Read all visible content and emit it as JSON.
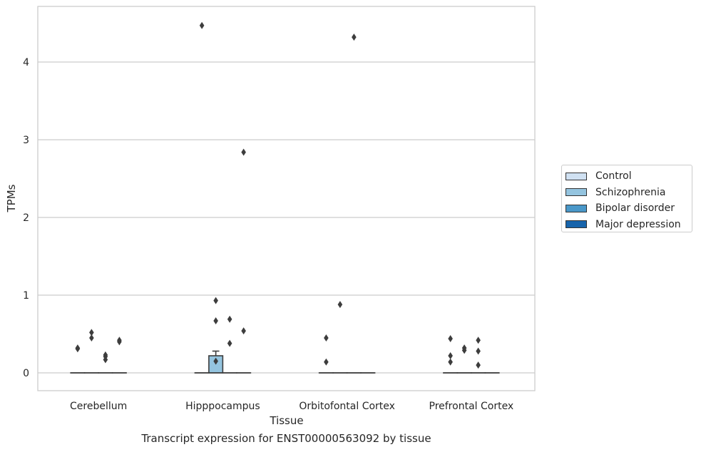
{
  "caption": "Transcript expression for ENST00000563092 by tissue",
  "chart_data": {
    "type": "box",
    "title": "",
    "xlabel": "Tissue",
    "ylabel": "TPMs",
    "ylim": [
      -0.22,
      4.7
    ],
    "yticks": [
      0,
      1,
      2,
      3,
      4
    ],
    "grid": "horizontal",
    "legend_placement": "right",
    "categories": [
      "Cerebellum",
      "Hipppocampus",
      "Orbitofontal Cortex",
      "Prefrontal Cortex"
    ],
    "series": [
      {
        "name": "Control",
        "color": "#d0e1f2"
      },
      {
        "name": "Schizophrenia",
        "color": "#94c4df"
      },
      {
        "name": "Bipolar disorder",
        "color": "#4a98c9"
      },
      {
        "name": "Major depression",
        "color": "#1764ab"
      }
    ],
    "boxes": [
      [
        {
          "q1": 0,
          "median": 0,
          "q3": 0,
          "whisker_low": 0,
          "whisker_high": 0,
          "outliers": [
            0.32,
            0.31
          ]
        },
        {
          "q1": 0,
          "median": 0,
          "q3": 0,
          "whisker_low": 0,
          "whisker_high": 0,
          "outliers": [
            0.52,
            0.45
          ]
        },
        {
          "q1": 0,
          "median": 0,
          "q3": 0,
          "whisker_low": 0,
          "whisker_high": 0,
          "outliers": [
            0.23,
            0.21,
            0.17
          ]
        },
        {
          "q1": 0,
          "median": 0,
          "q3": 0,
          "whisker_low": 0,
          "whisker_high": 0,
          "outliers": [
            0.42,
            0.4
          ]
        }
      ],
      [
        {
          "q1": 0,
          "median": 0,
          "q3": 0,
          "whisker_low": 0,
          "whisker_high": 0,
          "outliers": [
            4.47
          ]
        },
        {
          "q1": 0,
          "median": 0,
          "q3": 0.22,
          "whisker_low": 0,
          "whisker_high": 0.28,
          "outliers": [
            0.93,
            0.67,
            0.15
          ]
        },
        {
          "q1": 0,
          "median": 0,
          "q3": 0,
          "whisker_low": 0,
          "whisker_high": 0,
          "outliers": [
            0.69,
            0.38
          ]
        },
        {
          "q1": 0,
          "median": 0,
          "q3": 0,
          "whisker_low": 0,
          "whisker_high": 0,
          "outliers": [
            2.84,
            0.54
          ]
        }
      ],
      [
        {
          "q1": 0,
          "median": 0,
          "q3": 0,
          "whisker_low": 0,
          "whisker_high": 0,
          "outliers": [
            0.45,
            0.14
          ]
        },
        {
          "q1": 0,
          "median": 0,
          "q3": 0,
          "whisker_low": 0,
          "whisker_high": 0,
          "outliers": [
            0.88
          ]
        },
        {
          "q1": 0,
          "median": 0,
          "q3": 0,
          "whisker_low": 0,
          "whisker_high": 0,
          "outliers": [
            4.32
          ]
        },
        {
          "q1": 0,
          "median": 0,
          "q3": 0,
          "whisker_low": 0,
          "whisker_high": 0,
          "outliers": []
        }
      ],
      [
        {
          "q1": 0,
          "median": 0,
          "q3": 0,
          "whisker_low": 0,
          "whisker_high": 0,
          "outliers": [
            0.44,
            0.22,
            0.14
          ]
        },
        {
          "q1": 0,
          "median": 0,
          "q3": 0,
          "whisker_low": 0,
          "whisker_high": 0,
          "outliers": [
            0.32,
            0.29
          ]
        },
        {
          "q1": 0,
          "median": 0,
          "q3": 0,
          "whisker_low": 0,
          "whisker_high": 0,
          "outliers": [
            0.42,
            0.28,
            0.1
          ]
        },
        {
          "q1": 0,
          "median": 0,
          "q3": 0,
          "whisker_low": 0,
          "whisker_high": 0,
          "outliers": []
        }
      ]
    ]
  }
}
